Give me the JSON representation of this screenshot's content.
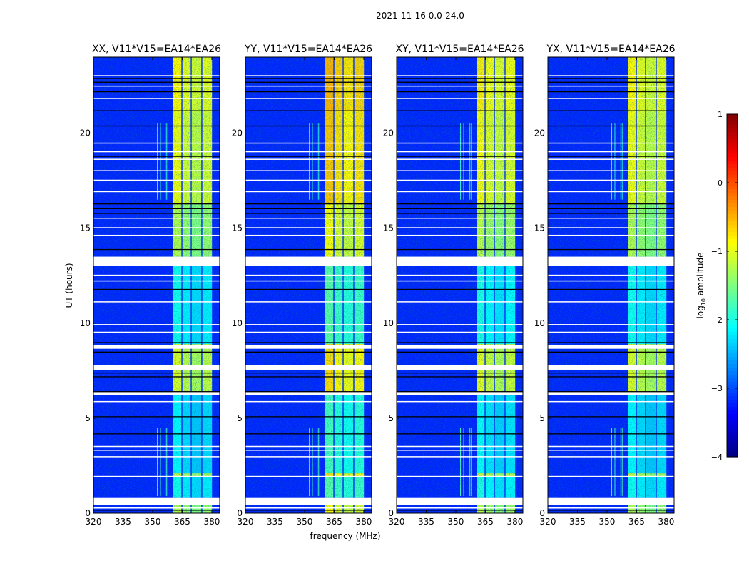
{
  "chart_data": {
    "type": "heatmap",
    "title": "2021-11-16 0.0-24.0",
    "xlabel": "frequency (MHz)",
    "ylabel": "UT (hours)",
    "xlim": [
      320,
      384
    ],
    "ylim": [
      0,
      24
    ],
    "xticks": [
      320,
      335,
      350,
      365,
      380
    ],
    "yticks": [
      0,
      5,
      10,
      15,
      20
    ],
    "colorbar": {
      "label": "log10 amplitude",
      "label_main": "log",
      "label_sub": "10",
      "label_rest": " amplitude",
      "range": [
        -4,
        1
      ],
      "ticks": [
        1,
        0,
        -1,
        -2,
        -3,
        -4
      ],
      "tick_labels": [
        "1",
        "0",
        "−1",
        "−2",
        "−3",
        "−4"
      ],
      "colormap": "jet"
    },
    "background_log_amplitude": -3.2,
    "bands_mhz": [
      [
        360.5,
        364.6
      ],
      [
        365.1,
        369.3
      ],
      [
        369.8,
        374.7
      ],
      [
        375.2,
        380.1
      ]
    ],
    "time_segments": [
      {
        "ut": [
          0,
          0.45
        ],
        "band_level": -1.4
      },
      {
        "ut": [
          0.8,
          1.9
        ],
        "band_level": -2.2
      },
      {
        "ut": [
          1.9,
          2.1
        ],
        "band_level": -1.3
      },
      {
        "ut": [
          2.1,
          6.4
        ],
        "band_level": -2.3
      },
      {
        "ut": [
          6.4,
          8.9
        ],
        "band_level": -1.2
      },
      {
        "ut": [
          8.9,
          13.0
        ],
        "band_level": -2.2
      },
      {
        "ut": [
          13.5,
          16.3
        ],
        "band_level": -1.4
      },
      {
        "ut": [
          16.3,
          21.2
        ],
        "band_level": -1.1
      },
      {
        "ut": [
          21.2,
          24.0
        ],
        "band_level": -1.0
      }
    ],
    "flagged_ut": [
      [
        0.25,
        0.3
      ],
      [
        0.45,
        0.8
      ],
      [
        1.9,
        1.96
      ],
      [
        2.95,
        3.0
      ],
      [
        3.3,
        3.34
      ],
      [
        3.5,
        3.54
      ],
      [
        5.85,
        5.9
      ],
      [
        6.2,
        6.38
      ],
      [
        7.55,
        7.78
      ],
      [
        8.65,
        8.85
      ],
      [
        9.5,
        9.55
      ],
      [
        9.9,
        9.95
      ],
      [
        11.1,
        11.15
      ],
      [
        12.2,
        12.25
      ],
      [
        12.5,
        12.55
      ],
      [
        13.0,
        13.5
      ],
      [
        14.6,
        14.65
      ],
      [
        15.0,
        15.05
      ],
      [
        15.5,
        15.55
      ],
      [
        16.9,
        16.95
      ],
      [
        17.5,
        17.55
      ],
      [
        18.0,
        18.05
      ],
      [
        18.6,
        18.65
      ],
      [
        19.0,
        19.05
      ],
      [
        19.45,
        19.5
      ],
      [
        21.8,
        21.85
      ],
      [
        22.45,
        22.5
      ],
      [
        23.0,
        23.05
      ]
    ],
    "dropout_ut": [
      0.18,
      4.2,
      5.1,
      6.42,
      7.2,
      7.4,
      8.5,
      9.0,
      11.8,
      13.9,
      15.8,
      16.05,
      16.3,
      18.8,
      20.4,
      21.2,
      22.2,
      22.7,
      22.9
    ],
    "rfi_spikes_mhz": [
      352.2,
      353.8,
      356.8,
      357.5
    ],
    "panels": [
      {
        "title": "XX, V11*V15=EA14*EA26",
        "level_offset": 0.0
      },
      {
        "title": "YY, V11*V15=EA14*EA26",
        "level_offset": 0.35
      },
      {
        "title": "XY, V11*V15=EA14*EA26",
        "level_offset": 0.05
      },
      {
        "title": "YX, V11*V15=EA14*EA26",
        "level_offset": 0.0
      }
    ]
  }
}
